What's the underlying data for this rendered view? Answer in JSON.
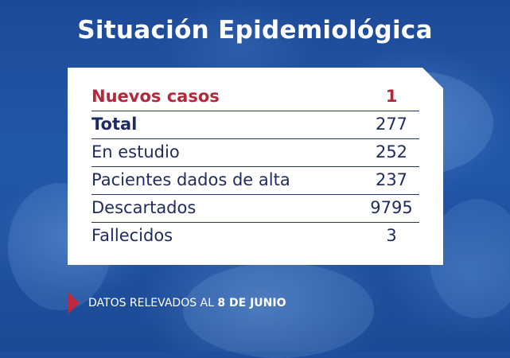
{
  "title": "Situación Epidemiológica",
  "rows": [
    {
      "label": "Nuevos casos",
      "value": "1"
    },
    {
      "label": "Total",
      "value": "277"
    },
    {
      "label": "En estudio",
      "value": "252"
    },
    {
      "label": "Pacientes dados de alta",
      "value": "237"
    },
    {
      "label": "Descartados",
      "value": "9795"
    },
    {
      "label": "Fallecidos",
      "value": "3"
    }
  ],
  "footnote": {
    "prefix": "DATOS RELEVADOS AL",
    "date": "8 DE JUNIO"
  },
  "colors": {
    "background": "#1f4f9c",
    "highlight": "#b5283c",
    "text": "#1f2b5e",
    "arrow": "#c0283c"
  },
  "icons": [
    "arrow-right-icon"
  ]
}
